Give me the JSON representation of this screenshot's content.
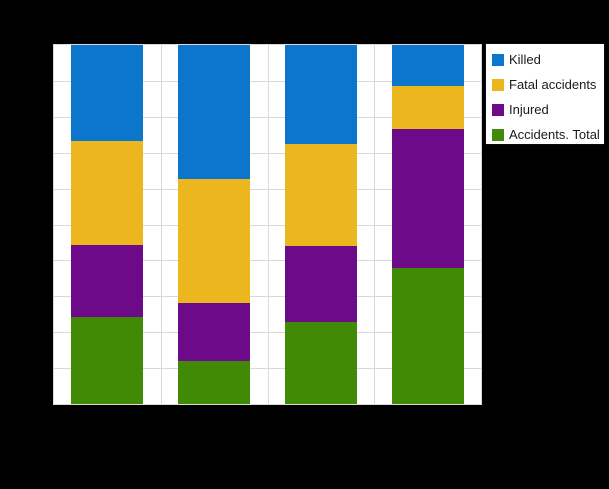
{
  "canvas": {
    "background": "#000000",
    "plot_background": "#ffffff",
    "gridline_color": "#d9d9d9"
  },
  "legend": {
    "border_color": "#0a0a0a",
    "background": "#ffffff",
    "items": [
      {
        "label": "Killed",
        "color": "#0b76cb"
      },
      {
        "label": "Fatal accidents",
        "color": "#ebb61e"
      },
      {
        "label": "Injured",
        "color": "#6c0a8a"
      },
      {
        "label": "Accidents. Total",
        "color": "#418a06"
      }
    ]
  },
  "chart_data": {
    "type": "bar",
    "subtype": "percent-stacked-column",
    "title": "",
    "xlabel": "",
    "ylabel": "",
    "categories": [
      "",
      "",
      "",
      ""
    ],
    "series": [
      {
        "name": "Killed",
        "color": "#0b76cb",
        "values": [
          26.7,
          37.3,
          27.6,
          11.4
        ]
      },
      {
        "name": "Fatal accidents",
        "color": "#ebb61e",
        "values": [
          29.0,
          34.5,
          28.4,
          12.0
        ]
      },
      {
        "name": "Injured",
        "color": "#6c0a8a",
        "values": [
          20.1,
          16.2,
          21.2,
          38.7
        ]
      },
      {
        "name": "Accidents. Total",
        "color": "#418a06",
        "values": [
          24.2,
          12.0,
          22.8,
          37.9
        ]
      }
    ],
    "stack_order_top_to_bottom": [
      "Killed",
      "Fatal accidents",
      "Injured",
      "Accidents. Total"
    ],
    "ylim": [
      0,
      100
    ],
    "y_gridline_step": 10,
    "x_gridlines_between_categories": true,
    "grid": true,
    "legend_position": "top-right",
    "axis_tick_labels_visible": false
  }
}
